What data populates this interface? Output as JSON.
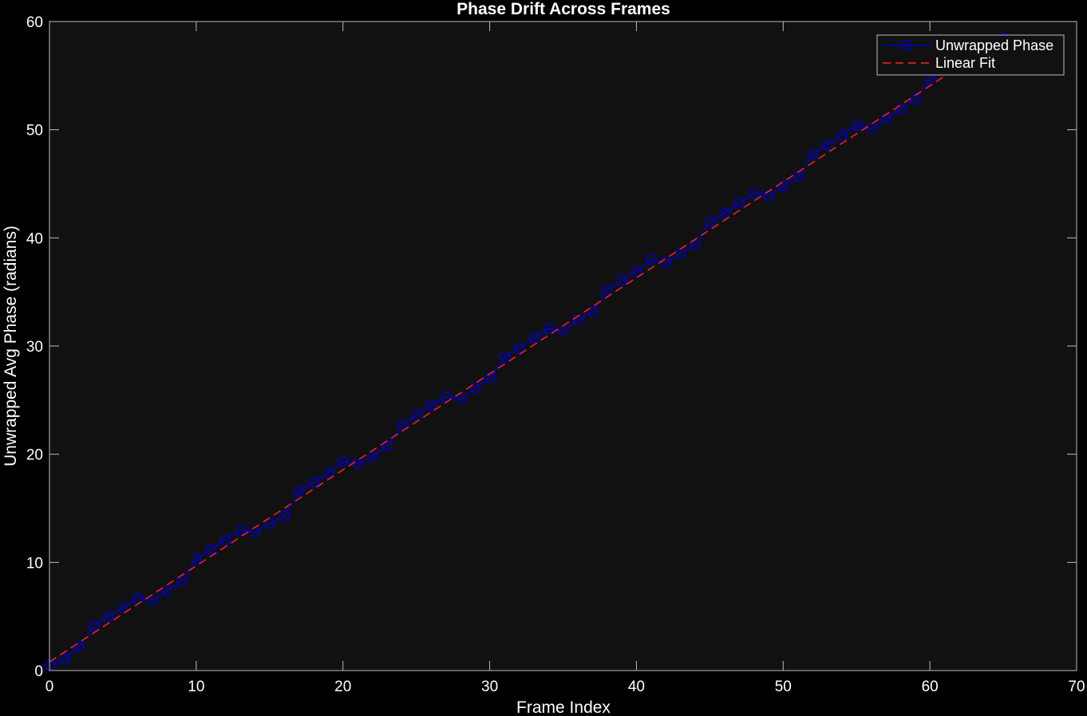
{
  "chart_data": {
    "type": "line",
    "title": "Phase Drift Across Frames",
    "xlabel": "Frame Index",
    "ylabel": "Unwrapped Avg Phase (radians)",
    "xlim": [
      0,
      70
    ],
    "ylim": [
      0,
      60
    ],
    "xticks": [
      0,
      10,
      20,
      30,
      40,
      50,
      60,
      70
    ],
    "yticks": [
      0,
      10,
      20,
      30,
      40,
      50,
      60
    ],
    "grid": false,
    "legend_position": "top-right",
    "background": "#111111",
    "series": [
      {
        "name": "Unwrapped Phase",
        "color": "#0000cc",
        "style": "solid-with-circle-markers",
        "x": [
          0,
          1,
          2,
          3,
          4,
          5,
          6,
          7,
          8,
          9,
          10,
          11,
          12,
          13,
          14,
          15,
          16,
          17,
          18,
          19,
          20,
          21,
          22,
          23,
          24,
          25,
          26,
          27,
          28,
          29,
          30,
          31,
          32,
          33,
          34,
          35,
          36,
          37,
          38,
          39,
          40,
          41,
          42,
          43,
          44,
          45,
          46,
          47,
          48,
          49,
          50,
          51,
          52,
          53,
          54,
          55,
          56,
          57,
          58,
          59,
          60,
          61,
          62,
          63,
          64,
          65
        ],
        "y": [
          0.5,
          1.1,
          2.2,
          4.1,
          5.0,
          5.8,
          6.7,
          6.5,
          7.4,
          8.3,
          10.3,
          11.2,
          12.1,
          13.0,
          12.8,
          13.6,
          14.3,
          16.6,
          17.4,
          18.3,
          19.3,
          19.1,
          19.8,
          20.8,
          22.7,
          23.6,
          24.5,
          25.3,
          25.1,
          26.1,
          27.1,
          29.0,
          29.8,
          30.8,
          31.6,
          31.4,
          32.4,
          33.2,
          35.2,
          36.1,
          36.9,
          38.0,
          37.7,
          38.6,
          39.4,
          41.5,
          42.3,
          43.2,
          44.1,
          43.9,
          44.8,
          45.7,
          47.7,
          48.6,
          49.5,
          50.4,
          50.1,
          51.0,
          51.9,
          52.8,
          54.7,
          55.6,
          56.5,
          57.4,
          58.2,
          58.5
        ]
      },
      {
        "name": "Linear Fit",
        "color": "#ff2020",
        "style": "dashed",
        "x": [
          0,
          65
        ],
        "y": [
          0.8,
          58.5
        ]
      }
    ]
  }
}
